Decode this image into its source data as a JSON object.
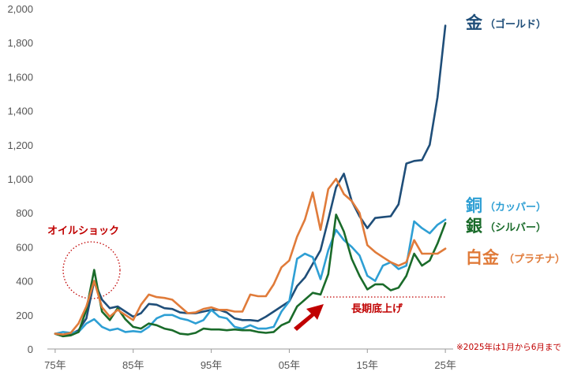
{
  "chart_data": {
    "type": "line",
    "x": [
      1975,
      1976,
      1977,
      1978,
      1979,
      1980,
      1981,
      1982,
      1983,
      1984,
      1985,
      1986,
      1987,
      1988,
      1989,
      1990,
      1991,
      1992,
      1993,
      1994,
      1995,
      1996,
      1997,
      1998,
      1999,
      2000,
      2001,
      2002,
      2003,
      2004,
      2005,
      2006,
      2007,
      2008,
      2009,
      2010,
      2011,
      2012,
      2013,
      2014,
      2015,
      2016,
      2017,
      2018,
      2019,
      2020,
      2021,
      2022,
      2023,
      2024,
      2025
    ],
    "xticks": [
      {
        "value": 1975,
        "label": "75年"
      },
      {
        "value": 1985,
        "label": "85年"
      },
      {
        "value": 1995,
        "label": "95年"
      },
      {
        "value": 2005,
        "label": "05年"
      },
      {
        "value": 2015,
        "label": "15年"
      },
      {
        "value": 2025,
        "label": "25年"
      }
    ],
    "yticks": [
      "0",
      "200",
      "400",
      "600",
      "800",
      "1,000",
      "1,200",
      "1,400",
      "1,600",
      "1,800",
      "2,000"
    ],
    "ylim": [
      0,
      2000
    ],
    "xlim": [
      1974,
      2026
    ],
    "series": [
      {
        "name": "金",
        "sublabel": "（ゴールド）",
        "color": "#1f4e79",
        "values": [
          90,
          75,
          87,
          110,
          180,
          400,
          290,
          240,
          250,
          220,
          190,
          210,
          265,
          260,
          240,
          235,
          215,
          210,
          210,
          220,
          230,
          230,
          215,
          180,
          170,
          170,
          165,
          190,
          220,
          250,
          280,
          370,
          420,
          500,
          580,
          760,
          950,
          1030,
          870,
          780,
          710,
          770,
          775,
          780,
          850,
          1090,
          1105,
          1110,
          1200,
          1480,
          1900
        ]
      },
      {
        "name": "銅",
        "sublabel": "（カッパー）",
        "color": "#2e9fd4",
        "values": [
          90,
          100,
          95,
          100,
          150,
          175,
          130,
          110,
          120,
          100,
          105,
          100,
          130,
          180,
          200,
          200,
          180,
          170,
          150,
          170,
          230,
          190,
          180,
          130,
          120,
          140,
          120,
          120,
          130,
          220,
          280,
          530,
          560,
          540,
          410,
          580,
          700,
          640,
          600,
          550,
          430,
          400,
          490,
          510,
          470,
          490,
          750,
          710,
          680,
          730,
          760
        ]
      },
      {
        "name": "銀",
        "sublabel": "（シルバー）",
        "color": "#1a6b2a",
        "values": [
          90,
          75,
          80,
          100,
          230,
          465,
          220,
          170,
          240,
          175,
          130,
          120,
          150,
          140,
          120,
          110,
          90,
          85,
          95,
          120,
          115,
          115,
          110,
          115,
          110,
          110,
          100,
          95,
          100,
          140,
          160,
          250,
          290,
          330,
          320,
          440,
          790,
          690,
          530,
          430,
          350,
          380,
          380,
          345,
          360,
          430,
          560,
          490,
          520,
          620,
          740
        ]
      },
      {
        "name": "白金",
        "sublabel": "（プラチナ）",
        "color": "#e07b3a",
        "values": [
          90,
          85,
          95,
          150,
          250,
          400,
          245,
          190,
          230,
          200,
          170,
          260,
          320,
          305,
          300,
          290,
          250,
          210,
          215,
          235,
          245,
          230,
          230,
          220,
          220,
          320,
          310,
          310,
          380,
          480,
          520,
          660,
          760,
          920,
          700,
          940,
          1000,
          910,
          870,
          800,
          610,
          570,
          540,
          510,
          490,
          510,
          640,
          560,
          560,
          560,
          590
        ]
      }
    ],
    "annotations": {
      "oil_shock": "オイルショック",
      "long_floor": "長期底上げ",
      "note": "※2025年は1月から6月まで"
    }
  },
  "colors": {
    "annotation_red": "#c00000",
    "axis": "#999999"
  }
}
